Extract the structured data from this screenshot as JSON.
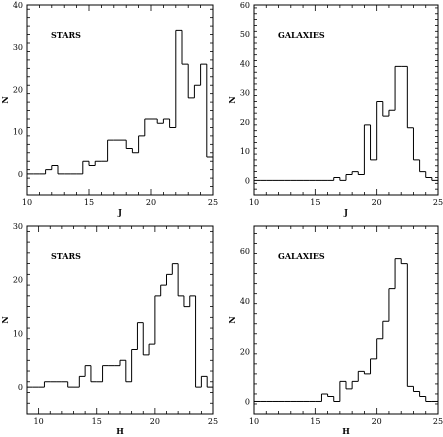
{
  "chart_data": [
    {
      "type": "histogram",
      "panel_label": "STARS",
      "xlabel": "J",
      "ylabel": "N",
      "xlim": [
        10,
        25
      ],
      "ylim": [
        -5,
        40
      ],
      "xticks": [
        "10",
        "15",
        "20",
        "25"
      ],
      "yticks": [
        "0",
        "10",
        "20",
        "30",
        "40"
      ],
      "bin_width": 0.5,
      "bin_start": 10,
      "values": [
        0,
        0,
        0,
        1,
        2,
        0,
        0,
        0,
        0,
        3,
        2,
        3,
        3,
        8,
        8,
        8,
        6,
        5,
        9,
        13,
        13,
        12,
        13,
        11,
        34,
        26,
        18,
        21,
        26,
        4,
        1,
        0,
        0,
        0,
        0,
        0,
        0,
        0,
        0,
        0
      ]
    },
    {
      "type": "histogram",
      "panel_label": "GALAXIES",
      "xlabel": "J",
      "ylabel": "N",
      "xlim": [
        10,
        25
      ],
      "ylim": [
        -5,
        60
      ],
      "xticks": [
        "10",
        "15",
        "20",
        "25"
      ],
      "yticks": [
        "0",
        "10",
        "20",
        "30",
        "40",
        "50",
        "60"
      ],
      "bin_width": 0.5,
      "bin_start": 10,
      "values": [
        0,
        0,
        0,
        0,
        0,
        0,
        0,
        0,
        0,
        0,
        0,
        0,
        0,
        1,
        0,
        2,
        3,
        2,
        19,
        7,
        27,
        22,
        24,
        39,
        39,
        18,
        7,
        3,
        1,
        0,
        0,
        0,
        0,
        0,
        0,
        0,
        0,
        0,
        0,
        0
      ]
    },
    {
      "type": "histogram",
      "panel_label": "STARS",
      "xlabel": "H",
      "ylabel": "N",
      "xlim": [
        9,
        25
      ],
      "ylim": [
        -5,
        30
      ],
      "xticks": [
        "10",
        "15",
        "20",
        "25"
      ],
      "yticks": [
        "0",
        "10",
        "20",
        "30"
      ],
      "bin_width": 0.5,
      "bin_start": 9,
      "values": [
        0,
        0,
        0,
        1,
        1,
        1,
        1,
        0,
        0,
        2,
        4,
        1,
        1,
        4,
        4,
        4,
        5,
        1,
        7,
        12,
        6,
        8,
        17,
        19,
        21,
        23,
        17,
        15,
        17,
        0,
        2,
        0,
        0,
        0,
        0,
        0,
        0,
        0,
        0,
        0,
        0,
        0
      ]
    },
    {
      "type": "histogram",
      "panel_label": "GALAXIES",
      "xlabel": "H",
      "ylabel": "N",
      "xlim": [
        10,
        25
      ],
      "ylim": [
        -5,
        70
      ],
      "xticks": [
        "10",
        "15",
        "20",
        "25"
      ],
      "yticks": [
        "0",
        "20",
        "40",
        "60"
      ],
      "bin_width": 0.5,
      "bin_start": 10,
      "values": [
        0,
        0,
        0,
        0,
        0,
        0,
        0,
        0,
        0,
        0,
        0,
        3,
        2,
        0,
        8,
        5,
        8,
        12,
        11,
        17,
        25,
        32,
        45,
        57,
        55,
        6,
        4,
        2,
        0,
        0,
        0,
        0,
        0,
        0,
        0,
        0,
        0,
        0,
        0,
        0
      ]
    }
  ]
}
